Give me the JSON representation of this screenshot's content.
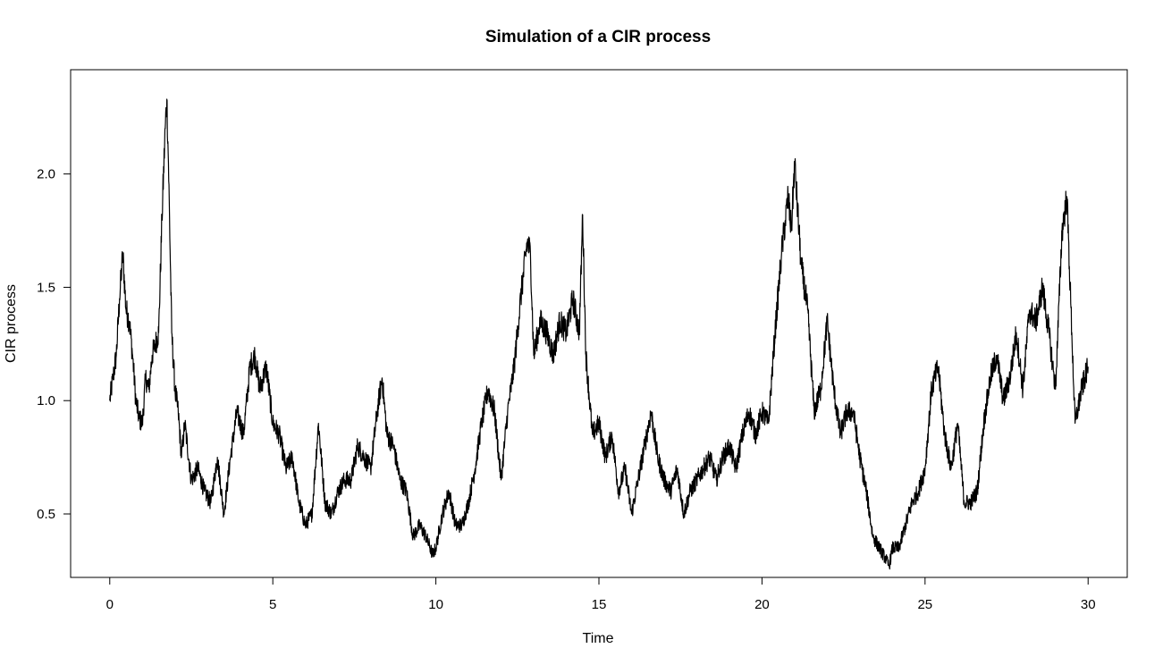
{
  "chart_data": {
    "type": "line",
    "title": "Simulation of a CIR process",
    "xlabel": "Time",
    "ylabel": "CIR process",
    "xlim": [
      -1.2,
      31.2
    ],
    "ylim": [
      0.22,
      2.46
    ],
    "x_ticks": [
      0,
      5,
      10,
      15,
      20,
      25,
      30
    ],
    "x_tick_labels": [
      "0",
      "5",
      "10",
      "15",
      "20",
      "25",
      "30"
    ],
    "y_ticks": [
      0.5,
      1.0,
      1.5,
      2.0
    ],
    "y_tick_labels": [
      "0.5",
      "1.0",
      "1.5",
      "2.0"
    ],
    "grid": false,
    "legend": "none",
    "line_color": "#000000",
    "series": [
      {
        "x": [
          0,
          0.1,
          0.2,
          0.3,
          0.4,
          0.5,
          0.6,
          0.7,
          0.8,
          0.9,
          1.0,
          1.1,
          1.2,
          1.3,
          1.4,
          1.5,
          1.6,
          1.7,
          1.75,
          1.8,
          1.9,
          2.0,
          2.1,
          2.2,
          2.3,
          2.5,
          2.7,
          2.9,
          3.1,
          3.3,
          3.5,
          3.7,
          3.9,
          4.1,
          4.3,
          4.45,
          4.6,
          4.8,
          5.0,
          5.2,
          5.4,
          5.6,
          5.8,
          6.0,
          6.2,
          6.4,
          6.6,
          6.8,
          7.0,
          7.2,
          7.4,
          7.6,
          7.8,
          8.0,
          8.2,
          8.35,
          8.5,
          8.7,
          8.9,
          9.1,
          9.3,
          9.5,
          9.7,
          9.9,
          10.0,
          10.2,
          10.4,
          10.6,
          10.8,
          11.0,
          11.2,
          11.4,
          11.6,
          11.8,
          12.0,
          12.2,
          12.4,
          12.6,
          12.8,
          12.9,
          13.0,
          13.2,
          13.4,
          13.6,
          13.8,
          14.0,
          14.2,
          14.4,
          14.5,
          14.6,
          14.8,
          15.0,
          15.2,
          15.4,
          15.6,
          15.8,
          16.0,
          16.2,
          16.4,
          16.6,
          16.8,
          17.0,
          17.2,
          17.4,
          17.6,
          17.8,
          18.0,
          18.2,
          18.4,
          18.6,
          18.8,
          19.0,
          19.2,
          19.4,
          19.6,
          19.8,
          20.0,
          20.2,
          20.4,
          20.6,
          20.8,
          20.9,
          21.0,
          21.2,
          21.4,
          21.6,
          21.8,
          22.0,
          22.2,
          22.4,
          22.6,
          22.8,
          23.0,
          23.2,
          23.4,
          23.6,
          23.8,
          23.9,
          24.0,
          24.2,
          24.4,
          24.6,
          24.8,
          25.0,
          25.2,
          25.4,
          25.6,
          25.8,
          26.0,
          26.2,
          26.4,
          26.6,
          26.8,
          27.0,
          27.2,
          27.4,
          27.6,
          27.8,
          28.0,
          28.2,
          28.4,
          28.6,
          28.8,
          29.0,
          29.2,
          29.35,
          29.5,
          29.6,
          29.8,
          30.0
        ],
        "y": [
          1.0,
          1.1,
          1.2,
          1.45,
          1.65,
          1.4,
          1.35,
          1.2,
          1.0,
          0.92,
          0.9,
          1.1,
          1.05,
          1.2,
          1.25,
          1.3,
          1.8,
          2.2,
          2.33,
          2.05,
          1.3,
          1.05,
          0.95,
          0.75,
          0.9,
          0.65,
          0.7,
          0.6,
          0.55,
          0.75,
          0.5,
          0.75,
          0.95,
          0.85,
          1.15,
          1.2,
          1.05,
          1.15,
          0.9,
          0.85,
          0.7,
          0.75,
          0.55,
          0.45,
          0.5,
          0.9,
          0.55,
          0.5,
          0.6,
          0.65,
          0.65,
          0.8,
          0.75,
          0.7,
          0.95,
          1.1,
          0.85,
          0.8,
          0.65,
          0.6,
          0.4,
          0.45,
          0.4,
          0.32,
          0.35,
          0.5,
          0.6,
          0.45,
          0.45,
          0.55,
          0.7,
          0.9,
          1.05,
          0.95,
          0.65,
          0.95,
          1.15,
          1.45,
          1.7,
          1.65,
          1.2,
          1.35,
          1.3,
          1.2,
          1.35,
          1.3,
          1.45,
          1.3,
          1.82,
          1.2,
          0.85,
          0.9,
          0.75,
          0.85,
          0.6,
          0.7,
          0.5,
          0.65,
          0.8,
          0.95,
          0.75,
          0.65,
          0.6,
          0.7,
          0.5,
          0.6,
          0.65,
          0.7,
          0.75,
          0.65,
          0.75,
          0.8,
          0.7,
          0.85,
          0.95,
          0.85,
          0.95,
          0.9,
          1.3,
          1.65,
          1.9,
          1.75,
          2.05,
          1.6,
          1.4,
          0.95,
          1.05,
          1.35,
          1.05,
          0.85,
          0.95,
          0.95,
          0.75,
          0.6,
          0.4,
          0.35,
          0.3,
          0.27,
          0.35,
          0.35,
          0.45,
          0.55,
          0.6,
          0.7,
          1.05,
          1.15,
          0.85,
          0.7,
          0.9,
          0.55,
          0.55,
          0.6,
          0.9,
          1.1,
          1.2,
          1.0,
          1.1,
          1.3,
          1.05,
          1.4,
          1.35,
          1.5,
          1.3,
          1.05,
          1.75,
          1.9,
          1.3,
          0.9,
          1.05,
          1.15
        ]
      }
    ]
  }
}
